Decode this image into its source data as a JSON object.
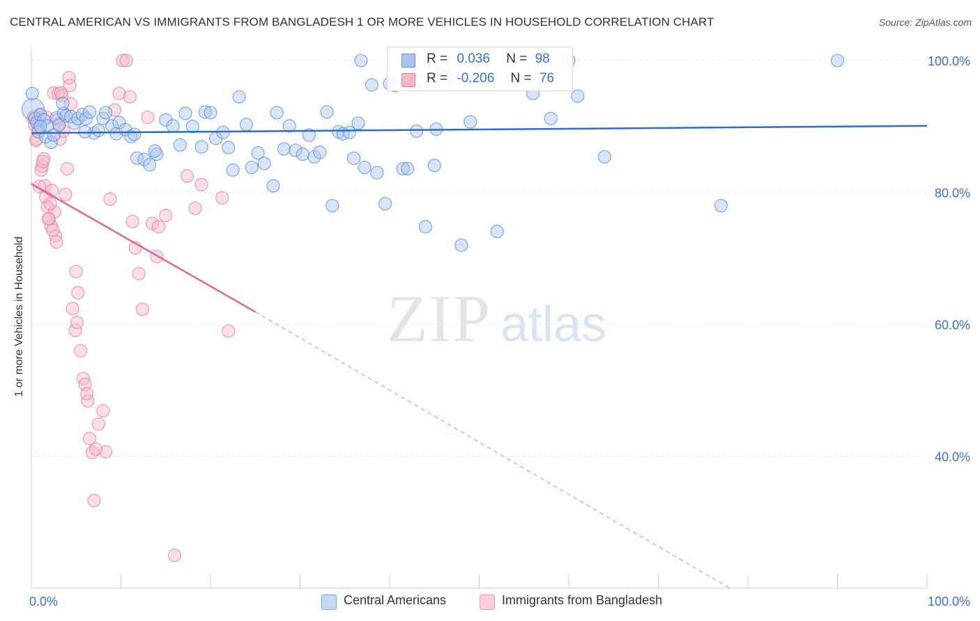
{
  "title": "CENTRAL AMERICAN VS IMMIGRANTS FROM BANGLADESH 1 OR MORE VEHICLES IN HOUSEHOLD CORRELATION CHART",
  "source": "Source: ZipAtlas.com",
  "watermark": {
    "zip": "ZIP",
    "atlas": "atlas"
  },
  "legend": {
    "rows": [
      {
        "r_label": "R =",
        "r_value": "0.036",
        "n_label": "N =",
        "n_value": "98"
      },
      {
        "r_label": "R =",
        "r_value": "-0.206",
        "n_label": "N =",
        "n_value": "76"
      }
    ]
  },
  "bottom_legend": [
    "Central Americans",
    "Immigrants from Bangladesh"
  ],
  "colors": {
    "blue_fill": "#a9c4ee",
    "blue_stroke": "#5b8fd9",
    "blue_line": "#2b6cc4",
    "pink_fill": "#f6b6c8",
    "pink_stroke": "#e57fa0",
    "pink_line": "#e0658f",
    "tick_label": "#3a6fd8",
    "grid": "#e6e6e6"
  },
  "chart_data": {
    "type": "scatter",
    "title": "CENTRAL AMERICAN VS IMMIGRANTS FROM BANGLADESH 1 OR MORE VEHICLES IN HOUSEHOLD CORRELATION CHART",
    "xlabel": "",
    "ylabel": "1 or more Vehicles in Household",
    "xlim": [
      0,
      100
    ],
    "ylim": [
      20,
      102
    ],
    "x_tick_labels": [
      "0.0%",
      "100.0%"
    ],
    "y_ticks": [
      40,
      60,
      80,
      100
    ],
    "y_tick_labels": [
      "40.0%",
      "60.0%",
      "80.0%",
      "100.0%"
    ],
    "grid": true,
    "legend_position": "top-center",
    "series": [
      {
        "name": "Central Americans",
        "trend": {
          "x": [
            0,
            100
          ],
          "y": [
            89.0,
            90.1
          ],
          "dashed_from": null
        },
        "points": [
          [
            0.2,
            92.6
          ],
          [
            0.4,
            91.2
          ],
          [
            0.6,
            90.6
          ],
          [
            0.8,
            89.2
          ],
          [
            1.0,
            91.8
          ],
          [
            1.4,
            91.0
          ],
          [
            1.6,
            88.4
          ],
          [
            1.8,
            90.1
          ],
          [
            2.2,
            87.6
          ],
          [
            2.5,
            88.7
          ],
          [
            2.8,
            91.3
          ],
          [
            3.1,
            90.2
          ],
          [
            3.6,
            92.0
          ],
          [
            3.9,
            91.6
          ],
          [
            4.4,
            91.5
          ],
          [
            4.8,
            90.5
          ],
          [
            5.2,
            91.2
          ],
          [
            5.7,
            91.8
          ],
          [
            6.1,
            91.2
          ],
          [
            6.5,
            92.2
          ],
          [
            7.0,
            89.0
          ],
          [
            7.5,
            89.4
          ],
          [
            8.0,
            91.2
          ],
          [
            8.3,
            92.1
          ],
          [
            9.0,
            90.1
          ],
          [
            9.5,
            88.9
          ],
          [
            9.8,
            90.6
          ],
          [
            10.5,
            89.5
          ],
          [
            11.1,
            88.5
          ],
          [
            11.8,
            85.2
          ],
          [
            12.6,
            85.0
          ],
          [
            13.2,
            84.2
          ],
          [
            14.0,
            85.8
          ],
          [
            15.0,
            91.0
          ],
          [
            15.8,
            90.1
          ],
          [
            16.6,
            87.2
          ],
          [
            17.2,
            92.0
          ],
          [
            18.0,
            90.0
          ],
          [
            19.0,
            86.9
          ],
          [
            19.4,
            92.2
          ],
          [
            20.0,
            92.1
          ],
          [
            20.6,
            88.2
          ],
          [
            21.4,
            89.1
          ],
          [
            22.0,
            86.8
          ],
          [
            22.5,
            83.4
          ],
          [
            23.2,
            94.5
          ],
          [
            24.0,
            90.3
          ],
          [
            24.6,
            83.8
          ],
          [
            25.3,
            86.0
          ],
          [
            26.0,
            84.4
          ],
          [
            27.0,
            81.0
          ],
          [
            27.4,
            92.1
          ],
          [
            28.2,
            86.6
          ],
          [
            28.8,
            90.1
          ],
          [
            29.5,
            86.4
          ],
          [
            30.3,
            85.8
          ],
          [
            31.0,
            88.7
          ],
          [
            31.6,
            85.4
          ],
          [
            32.2,
            86.1
          ],
          [
            33.0,
            92.2
          ],
          [
            33.6,
            78.0
          ],
          [
            34.3,
            89.2
          ],
          [
            34.8,
            88.9
          ],
          [
            35.5,
            89.1
          ],
          [
            36.0,
            85.2
          ],
          [
            36.5,
            90.5
          ],
          [
            37.2,
            83.8
          ],
          [
            38.0,
            96.3
          ],
          [
            38.6,
            83.0
          ],
          [
            39.5,
            78.3
          ],
          [
            40.0,
            96.5
          ],
          [
            40.6,
            96.2
          ],
          [
            41.5,
            83.6
          ],
          [
            42.0,
            83.6
          ],
          [
            43.0,
            89.3
          ],
          [
            44.0,
            74.8
          ],
          [
            45.0,
            84.1
          ],
          [
            45.2,
            89.6
          ],
          [
            46.0,
            98.6
          ],
          [
            46.5,
            97.5
          ],
          [
            48.0,
            72.0
          ],
          [
            49.0,
            90.7
          ],
          [
            50.0,
            100.0
          ],
          [
            52.0,
            74.1
          ],
          [
            56.0,
            95.0
          ],
          [
            58.0,
            91.2
          ],
          [
            60.0,
            100.0
          ],
          [
            61.0,
            94.6
          ],
          [
            64.0,
            85.4
          ],
          [
            77.0,
            78.0
          ],
          [
            90.0,
            100.0
          ],
          [
            36.8,
            100.0
          ],
          [
            0.1,
            95.0
          ],
          [
            1.0,
            90.0
          ],
          [
            3.5,
            93.5
          ],
          [
            6.0,
            89.2
          ],
          [
            11.5,
            88.8
          ],
          [
            13.8,
            86.3
          ]
        ]
      },
      {
        "name": "Immigrants from Bangladesh",
        "trend": {
          "x": [
            0,
            25,
            78
          ],
          "y": [
            81.3,
            61.9,
            20.0
          ],
          "dashed_from": 25
        },
        "points": [
          [
            0.2,
            91.2
          ],
          [
            0.4,
            90.2
          ],
          [
            0.6,
            88.1
          ],
          [
            0.8,
            89.7
          ],
          [
            1.0,
            91.8
          ],
          [
            1.1,
            83.4
          ],
          [
            1.2,
            84.0
          ],
          [
            1.4,
            85.1
          ],
          [
            1.5,
            81.0
          ],
          [
            1.6,
            79.3
          ],
          [
            1.7,
            91.4
          ],
          [
            1.8,
            77.8
          ],
          [
            2.0,
            76.0
          ],
          [
            2.2,
            74.9
          ],
          [
            2.3,
            80.3
          ],
          [
            2.5,
            95.1
          ],
          [
            2.6,
            77.1
          ],
          [
            2.7,
            73.4
          ],
          [
            2.8,
            72.5
          ],
          [
            3.0,
            95.0
          ],
          [
            3.2,
            88.1
          ],
          [
            3.4,
            94.7
          ],
          [
            3.6,
            89.3
          ],
          [
            3.8,
            79.7
          ],
          [
            4.0,
            83.6
          ],
          [
            4.2,
            97.4
          ],
          [
            4.3,
            96.2
          ],
          [
            4.4,
            93.4
          ],
          [
            4.6,
            62.4
          ],
          [
            4.9,
            59.1
          ],
          [
            5.0,
            68.0
          ],
          [
            5.2,
            64.8
          ],
          [
            5.5,
            56.0
          ],
          [
            5.8,
            51.8
          ],
          [
            6.0,
            50.9
          ],
          [
            6.3,
            48.4
          ],
          [
            6.5,
            42.7
          ],
          [
            6.8,
            40.6
          ],
          [
            7.0,
            33.3
          ],
          [
            7.5,
            44.9
          ],
          [
            8.0,
            46.9
          ],
          [
            8.3,
            40.7
          ],
          [
            8.8,
            79.0
          ],
          [
            9.3,
            92.5
          ],
          [
            9.8,
            95.0
          ],
          [
            10.2,
            100.0
          ],
          [
            10.6,
            100.0
          ],
          [
            11.0,
            94.5
          ],
          [
            11.3,
            75.6
          ],
          [
            11.6,
            71.6
          ],
          [
            12.0,
            67.7
          ],
          [
            12.4,
            62.3
          ],
          [
            13.0,
            91.4
          ],
          [
            13.5,
            75.3
          ],
          [
            14.0,
            70.3
          ],
          [
            14.2,
            74.8
          ],
          [
            15.0,
            76.5
          ],
          [
            16.0,
            25.0
          ],
          [
            17.4,
            82.5
          ],
          [
            18.3,
            77.6
          ],
          [
            19.0,
            81.2
          ],
          [
            21.3,
            79.2
          ],
          [
            22.0,
            59.0
          ],
          [
            0.3,
            91.5
          ],
          [
            0.5,
            87.9
          ],
          [
            0.9,
            80.9
          ],
          [
            1.3,
            84.7
          ],
          [
            1.9,
            76.0
          ],
          [
            2.1,
            78.3
          ],
          [
            2.4,
            74.3
          ],
          [
            2.9,
            91.0
          ],
          [
            3.1,
            90.4
          ],
          [
            3.3,
            95.1
          ],
          [
            5.1,
            60.3
          ],
          [
            6.2,
            49.5
          ],
          [
            7.2,
            41.1
          ]
        ]
      }
    ]
  }
}
